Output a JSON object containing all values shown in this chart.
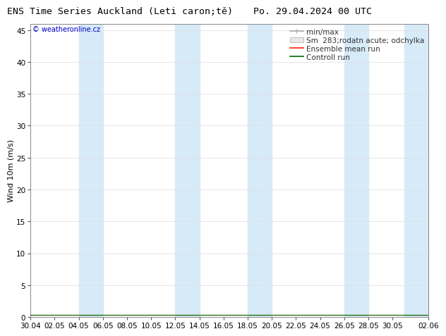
{
  "title_left": "ENS Time Series Auckland (Leti caron;tě)",
  "title_right": "Po. 29.04.2024 00 UTC",
  "ylabel": "Wind 10m (m/s)",
  "watermark": "© weatheronline.cz",
  "ylim": [
    0,
    46
  ],
  "yticks": [
    0,
    5,
    10,
    15,
    20,
    25,
    30,
    35,
    40,
    45
  ],
  "xtick_labels": [
    "30.04",
    "02.05",
    "04.05",
    "06.05",
    "08.05",
    "10.05",
    "12.05",
    "14.05",
    "16.05",
    "18.05",
    "20.05",
    "22.05",
    "24.05",
    "26.05",
    "28.05",
    "30.05",
    "02.06"
  ],
  "xtick_positions": [
    0,
    2,
    4,
    6,
    8,
    10,
    12,
    14,
    16,
    18,
    20,
    22,
    24,
    26,
    28,
    30,
    33
  ],
  "shade_bands": [
    [
      4,
      6
    ],
    [
      12,
      14
    ],
    [
      18,
      20
    ],
    [
      26,
      28
    ],
    [
      31,
      33
    ]
  ],
  "shade_color": "#d6eaf8",
  "bg_color": "#ffffff",
  "legend_minmax_color": "#aaaaaa",
  "legend_spread_color": "#d0d0d0",
  "ensemble_color": "#ff2200",
  "control_color": "#006600",
  "grid_color": "#e0e0e0",
  "tick_color": "#555555",
  "border_color": "#888888",
  "watermark_color": "#0000cc",
  "title_fontsize": 9.5,
  "label_fontsize": 8,
  "tick_fontsize": 7.5,
  "legend_fontsize": 7.5,
  "data_x": [
    0,
    2,
    4,
    6,
    8,
    10,
    12,
    14,
    16,
    18,
    20,
    22,
    24,
    26,
    28,
    30,
    33
  ],
  "ensemble_mean": [
    0.3,
    0.3,
    0.3,
    0.3,
    0.3,
    0.3,
    0.3,
    0.3,
    0.3,
    0.3,
    0.3,
    0.3,
    0.3,
    0.3,
    0.3,
    0.3,
    0.3
  ],
  "control_run": [
    0.3,
    0.3,
    0.3,
    0.3,
    0.3,
    0.3,
    0.3,
    0.3,
    0.3,
    0.3,
    0.3,
    0.3,
    0.3,
    0.3,
    0.3,
    0.3,
    0.3
  ]
}
